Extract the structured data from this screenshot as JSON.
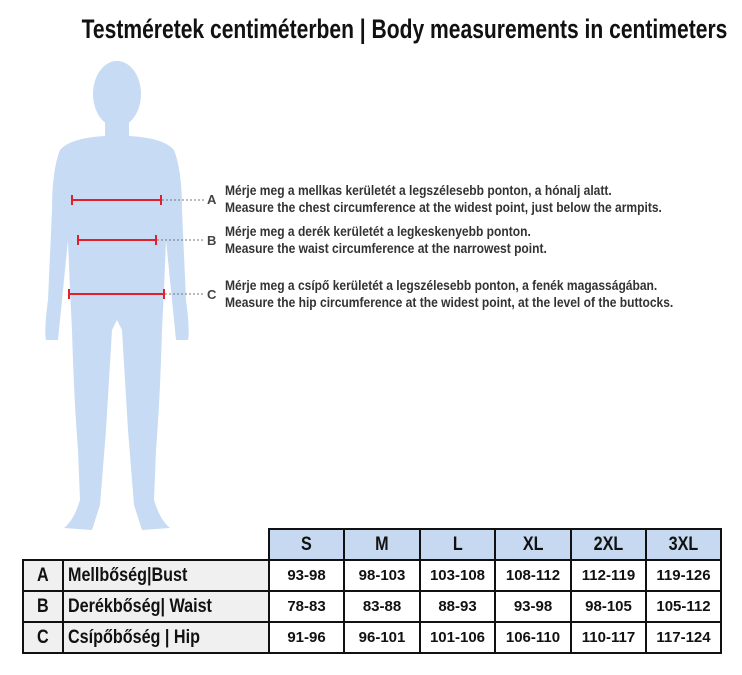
{
  "title": "Testméretek centiméterben | Body measurements in centimeters",
  "colors": {
    "figure": "#c7dbf4",
    "header": "#c6d9f1",
    "label_cells": "#f0f0f0",
    "measure_lines": "#e0202a"
  },
  "measurements": [
    {
      "letter": "A",
      "hu": "Mérje meg a mellkas kerületét a legszélesebb ponton, a hónalj alatt.",
      "en": "Measure the chest circumference at the widest point, just below the armpits."
    },
    {
      "letter": "B",
      "hu": "Mérje meg a derék kerületét a legkeskenyebb ponton.",
      "en": "Measure the waist circumference at the narrowest point."
    },
    {
      "letter": "C",
      "hu": "Mérje meg a csípő kerületét a legszélesebb ponton, a fenék magasságában.",
      "en": "Measure the hip circumference at the widest point, at the level of the buttocks."
    }
  ],
  "table": {
    "sizes": [
      "S",
      "M",
      "L",
      "XL",
      "2XL",
      "3XL"
    ],
    "rows": [
      {
        "letter": "A",
        "label": "Mellbőség|Bust",
        "values": [
          "93-98",
          "98-103",
          "103-108",
          "108-112",
          "112-119",
          "119-126"
        ]
      },
      {
        "letter": "B",
        "label": "Derékbőség| Waist",
        "values": [
          "78-83",
          "83-88",
          "88-93",
          "93-98",
          "98-105",
          "105-112"
        ]
      },
      {
        "letter": "C",
        "label": "Csípőbőség | Hip",
        "values": [
          "91-96",
          "96-101",
          "101-106",
          "106-110",
          "110-117",
          "117-124"
        ]
      }
    ]
  }
}
